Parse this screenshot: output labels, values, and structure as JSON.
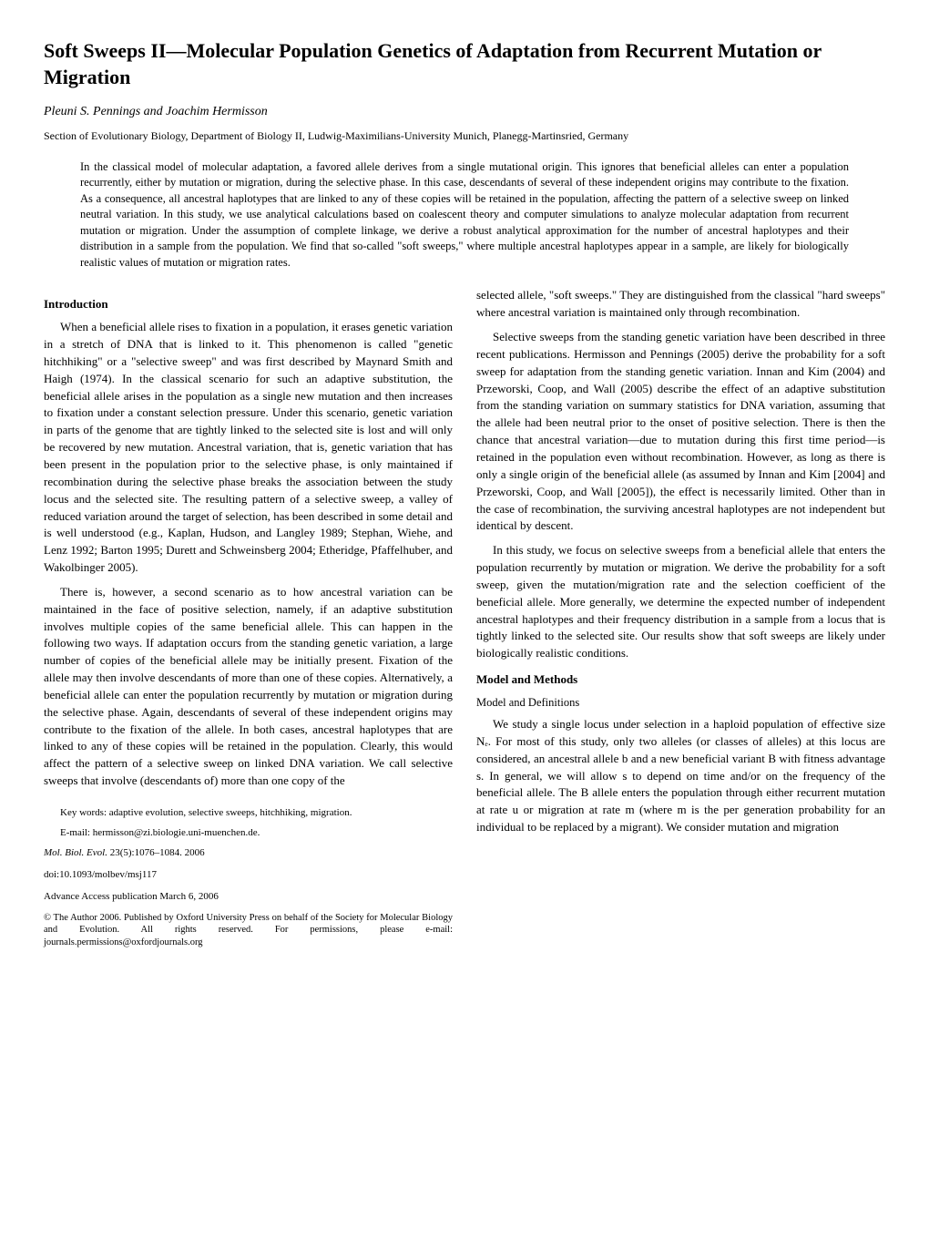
{
  "title": "Soft Sweeps II—Molecular Population Genetics of Adaptation from Recurrent Mutation or Migration",
  "authors": "Pleuni S. Pennings and Joachim Hermisson",
  "affiliation": "Section of Evolutionary Biology, Department of Biology II, Ludwig-Maximilians-University Munich, Planegg-Martinsried, Germany",
  "abstract": "In the classical model of molecular adaptation, a favored allele derives from a single mutational origin. This ignores that beneficial alleles can enter a population recurrently, either by mutation or migration, during the selective phase. In this case, descendants of several of these independent origins may contribute to the fixation. As a consequence, all ancestral haplotypes that are linked to any of these copies will be retained in the population, affecting the pattern of a selective sweep on linked neutral variation. In this study, we use analytical calculations based on coalescent theory and computer simulations to analyze molecular adaptation from recurrent mutation or migration. Under the assumption of complete linkage, we derive a robust analytical approximation for the number of ancestral haplotypes and their distribution in a sample from the population. We find that so-called \"soft sweeps,\" where multiple ancestral haplotypes appear in a sample, are likely for biologically realistic values of mutation or migration rates.",
  "intro_heading": "Introduction",
  "left": {
    "p1": "When a beneficial allele rises to fixation in a population, it erases genetic variation in a stretch of DNA that is linked to it. This phenomenon is called \"genetic hitchhiking\" or a \"selective sweep\" and was first described by Maynard Smith and Haigh (1974). In the classical scenario for such an adaptive substitution, the beneficial allele arises in the population as a single new mutation and then increases to fixation under a constant selection pressure. Under this scenario, genetic variation in parts of the genome that are tightly linked to the selected site is lost and will only be recovered by new mutation. Ancestral variation, that is, genetic variation that has been present in the population prior to the selective phase, is only maintained if recombination during the selective phase breaks the association between the study locus and the selected site. The resulting pattern of a selective sweep, a valley of reduced variation around the target of selection, has been described in some detail and is well understood (e.g., Kaplan, Hudson, and Langley 1989; Stephan, Wiehe, and Lenz 1992; Barton 1995; Durett and Schweinsberg 2004; Etheridge, Pfaffelhuber, and Wakolbinger 2005).",
    "p2": "There is, however, a second scenario as to how ancestral variation can be maintained in the face of positive selection, namely, if an adaptive substitution involves multiple copies of the same beneficial allele. This can happen in the following two ways. If adaptation occurs from the standing genetic variation, a large number of copies of the beneficial allele may be initially present. Fixation of the allele may then involve descendants of more than one of these copies. Alternatively, a beneficial allele can enter the population recurrently by mutation or migration during the selective phase. Again, descendants of several of these independent origins may contribute to the fixation of the allele. In both cases, ancestral haplotypes that are linked to any of these copies will be retained in the population. Clearly, this would affect the pattern of a selective sweep on linked DNA variation. We call selective sweeps that involve (descendants of) more than one copy of the"
  },
  "right": {
    "p1": "selected allele, \"soft sweeps.\" They are distinguished from the classical \"hard sweeps\" where ancestral variation is maintained only through recombination.",
    "p2": "Selective sweeps from the standing genetic variation have been described in three recent publications. Hermisson and Pennings (2005) derive the probability for a soft sweep for adaptation from the standing genetic variation. Innan and Kim (2004) and Przeworski, Coop, and Wall (2005) describe the effect of an adaptive substitution from the standing variation on summary statistics for DNA variation, assuming that the allele had been neutral prior to the onset of positive selection. There is then the chance that ancestral variation—due to mutation during this first time period—is retained in the population even without recombination. However, as long as there is only a single origin of the beneficial allele (as assumed by Innan and Kim [2004] and Przeworski, Coop, and Wall [2005]), the effect is necessarily limited. Other than in the case of recombination, the surviving ancestral haplotypes are not independent but identical by descent.",
    "p3": "In this study, we focus on selective sweeps from a beneficial allele that enters the population recurrently by mutation or migration. We derive the probability for a soft sweep, given the mutation/migration rate and the selection coefficient of the beneficial allele. More generally, we determine the expected number of independent ancestral haplotypes and their frequency distribution in a sample from a locus that is tightly linked to the selected site. Our results show that soft sweeps are likely under biologically realistic conditions."
  },
  "methods_heading": "Model and Methods",
  "methods_sub": "Model and Definitions",
  "methods_p1": "We study a single locus under selection in a haploid population of effective size Nₑ. For most of this study, only two alleles (or classes of alleles) at this locus are considered, an ancestral allele b and a new beneficial variant B with fitness advantage s. In general, we will allow s to depend on time and/or on the frequency of the beneficial allele. The B allele enters the population through either recurrent mutation at rate u or migration at rate m (where m is the per generation probability for an individual to be replaced by a migrant). We consider mutation and migration",
  "keywords": "Key words: adaptive evolution, selective sweeps, hitchhiking, migration.",
  "email": "E-mail: hermisson@zi.biologie.uni-muenchen.de.",
  "journal": "Mol. Biol. Evol.",
  "volpages": " 23(5):1076–1084. 2006",
  "doi": "doi:10.1093/molbev/msj117",
  "advance": "Advance Access publication March 6, 2006",
  "copyright": "© The Author 2006. Published by Oxford University Press on behalf of the Society for Molecular Biology and Evolution. All rights reserved. For permissions, please e-mail: journals.permissions@oxfordjournals.org"
}
